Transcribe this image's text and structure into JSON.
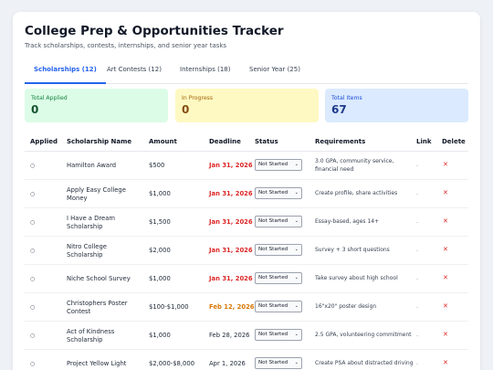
{
  "header": {
    "title": "College Prep & Opportunities Tracker",
    "subtitle": "Track scholarships, contests, internships, and senior year tasks"
  },
  "tabs": [
    {
      "label": "Scholarships (12)",
      "active": true
    },
    {
      "label": "Art Contests (12)",
      "active": false
    },
    {
      "label": "Internships (18)",
      "active": false
    },
    {
      "label": "Senior Year (25)",
      "active": false
    }
  ],
  "stats": {
    "applied": {
      "label": "Total Applied",
      "value": "0"
    },
    "progress": {
      "label": "In Progress",
      "value": "0"
    },
    "items": {
      "label": "Total Items",
      "value": "67"
    }
  },
  "table": {
    "headers": {
      "applied": "Applied",
      "name": "Scholarship Name",
      "amount": "Amount",
      "deadline": "Deadline",
      "status": "Status",
      "requirements": "Requirements",
      "link": "Link",
      "delete": "Delete"
    },
    "rows": [
      {
        "applied": "○",
        "name": "Hamilton Award",
        "amount": "$500",
        "deadline": "Jan 31, 2026",
        "deadline_style": "red",
        "status": "Not Started",
        "requirements": "3.0 GPA, community service, financial need",
        "link": "-",
        "delete": "✕"
      },
      {
        "applied": "○",
        "name": "Apply Easy College Money",
        "amount": "$1,000",
        "deadline": "Jan 31, 2026",
        "deadline_style": "red",
        "status": "Not Started",
        "requirements": "Create profile, share activities",
        "link": "-",
        "delete": "✕"
      },
      {
        "applied": "○",
        "name": "I Have a Dream Scholarship",
        "amount": "$1,500",
        "deadline": "Jan 31, 2026",
        "deadline_style": "red",
        "status": "Not Started",
        "requirements": "Essay-based, ages 14+",
        "link": "-",
        "delete": "✕"
      },
      {
        "applied": "○",
        "name": "Nitro College Scholarship",
        "amount": "$2,000",
        "deadline": "Jan 31, 2026",
        "deadline_style": "red",
        "status": "Not Started",
        "requirements": "Survey + 3 short questions",
        "link": "-",
        "delete": "✕"
      },
      {
        "applied": "○",
        "name": "Niche School Survey",
        "amount": "$1,000",
        "deadline": "Jan 31, 2026",
        "deadline_style": "red",
        "status": "Not Started",
        "requirements": "Take survey about high school",
        "link": "-",
        "delete": "✕"
      },
      {
        "applied": "○",
        "name": "Christophers Poster Contest",
        "amount": "$100-$1,000",
        "deadline": "Feb 12, 2026",
        "deadline_style": "orange",
        "status": "Not Started",
        "requirements": "16\"x20\" poster design",
        "link": "-",
        "delete": "✕"
      },
      {
        "applied": "○",
        "name": "Act of Kindness Scholarship",
        "amount": "$1,000",
        "deadline": "Feb 28, 2026",
        "deadline_style": "normal",
        "status": "Not Started",
        "requirements": "2.5 GPA, volunteering commitment",
        "link": "-",
        "delete": "✕"
      },
      {
        "applied": "○",
        "name": "Project Yellow Light",
        "amount": "$2,000-$8,000",
        "deadline": "Apr 1, 2026",
        "deadline_style": "normal",
        "status": "Not Started",
        "requirements": "Create PSA about distracted driving",
        "link": "-",
        "delete": "✕"
      }
    ]
  },
  "icons": {
    "caret": "chevron-down-icon",
    "delete": "close-icon",
    "applied": "circle-icon"
  }
}
